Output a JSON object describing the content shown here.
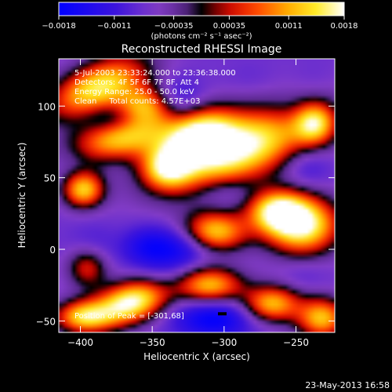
{
  "chart_data": {
    "type": "heatmap",
    "title": "Reconstructed RHESSI Image",
    "xlabel": "Heliocentric X (arcsec)",
    "ylabel": "Heliocentric Y (arcsec)",
    "xlim": [
      -415,
      -223
    ],
    "ylim": [
      -58,
      133
    ],
    "x_ticks": [
      -400,
      -350,
      -300,
      -250
    ],
    "y_ticks": [
      -50,
      0,
      50,
      100
    ],
    "x_tick_labels": [
      "−400",
      "−350",
      "−300",
      "−250"
    ],
    "y_tick_labels": [
      "−50",
      "0",
      "50",
      "100"
    ],
    "colorbar": {
      "range": [
        -0.0018,
        0.0018
      ],
      "ticks": [
        -0.0018,
        -0.0011,
        -0.00035,
        0.00035,
        0.0011,
        0.0018
      ],
      "tick_labels": [
        "−0.0018",
        "−0.0011",
        "−0.00035",
        "0.00035",
        "0.0011",
        "0.0018"
      ],
      "units_label": "(photons cm⁻² s⁻¹ asec⁻²)"
    },
    "annotations": [
      "5-Jul-2003 23:33:24.000 to 23:36:38.000",
      "Detectors: 4F 5F 6F 7F 8F, Att 4",
      "Energy Range: 25.0 - 50.0 keV",
      "Clean     Total counts: 4.57E+03"
    ],
    "peak_label": "Position of Peak = [-301,68]",
    "peak": [
      -301,
      68
    ],
    "components": [
      {
        "x": -290,
        "y": 70,
        "value": 0.00185,
        "sx": 38,
        "sy": 16,
        "angle": 20
      },
      {
        "x": -318,
        "y": 80,
        "value": 0.0014,
        "sx": 18,
        "sy": 12,
        "angle": 20
      },
      {
        "x": -372,
        "y": 77,
        "value": 0.0012,
        "sx": 24,
        "sy": 10,
        "angle": 10
      },
      {
        "x": -388,
        "y": 113,
        "value": 0.0015,
        "sx": 25,
        "sy": 12,
        "angle": 25
      },
      {
        "x": -355,
        "y": 100,
        "value": 0.001,
        "sx": 14,
        "sy": 10,
        "angle": 0
      },
      {
        "x": -340,
        "y": 57,
        "value": 0.001,
        "sx": 12,
        "sy": 10,
        "angle": 0
      },
      {
        "x": -300,
        "y": 40,
        "value": -0.0011,
        "sx": 14,
        "sy": 8,
        "angle": 0
      },
      {
        "x": -398,
        "y": 42,
        "value": 0.0013,
        "sx": 10,
        "sy": 9,
        "angle": 0
      },
      {
        "x": -308,
        "y": 12,
        "value": 0.0016,
        "sx": 16,
        "sy": 10,
        "angle": 0
      },
      {
        "x": -246,
        "y": 17,
        "value": 0.0018,
        "sx": 18,
        "sy": 14,
        "angle": 0
      },
      {
        "x": -264,
        "y": 27,
        "value": 0.0012,
        "sx": 14,
        "sy": 10,
        "angle": 0
      },
      {
        "x": -237,
        "y": 88,
        "value": 0.001,
        "sx": 10,
        "sy": 10,
        "angle": 0
      },
      {
        "x": -310,
        "y": -25,
        "value": 0.0012,
        "sx": 16,
        "sy": 9,
        "angle": 0
      },
      {
        "x": -365,
        "y": -37,
        "value": 0.0018,
        "sx": 18,
        "sy": 10,
        "angle": 15
      },
      {
        "x": -398,
        "y": -47,
        "value": 0.0012,
        "sx": 14,
        "sy": 8,
        "angle": 0
      },
      {
        "x": -267,
        "y": -38,
        "value": 0.0012,
        "sx": 14,
        "sy": 9,
        "angle": 0
      },
      {
        "x": -232,
        "y": -48,
        "value": 0.0012,
        "sx": 12,
        "sy": 10,
        "angle": 0
      },
      {
        "x": -395,
        "y": -12,
        "value": 0.0006,
        "sx": 10,
        "sy": 10,
        "angle": 0
      },
      {
        "x": -328,
        "y": 3,
        "value": -0.0018,
        "sx": 18,
        "sy": 11,
        "angle": 10
      },
      {
        "x": -355,
        "y": 2,
        "value": -0.0013,
        "sx": 12,
        "sy": 10,
        "angle": 0
      },
      {
        "x": -307,
        "y": -48,
        "value": -0.0018,
        "sx": 20,
        "sy": 10,
        "angle": 0
      },
      {
        "x": -333,
        "y": 105,
        "value": -0.0013,
        "sx": 12,
        "sy": 10,
        "angle": 0
      },
      {
        "x": -378,
        "y": 92,
        "value": -0.0011,
        "sx": 14,
        "sy": 7,
        "angle": 0
      },
      {
        "x": -252,
        "y": 97,
        "value": -0.0009,
        "sx": 12,
        "sy": 10,
        "angle": 0
      },
      {
        "x": -243,
        "y": 58,
        "value": -0.0012,
        "sx": 12,
        "sy": 10,
        "angle": 0
      },
      {
        "x": -392,
        "y": 0,
        "value": -0.0011,
        "sx": 12,
        "sy": 12,
        "angle": 0
      },
      {
        "x": -405,
        "y": 60,
        "value": -0.0008,
        "sx": 8,
        "sy": 12,
        "angle": 0
      },
      {
        "x": -282,
        "y": 120,
        "value": -0.0008,
        "sx": 12,
        "sy": 8,
        "angle": 0
      },
      {
        "x": -238,
        "y": 118,
        "value": -0.0008,
        "sx": 10,
        "sy": 10,
        "angle": 0
      },
      {
        "x": -245,
        "y": -18,
        "value": -0.0009,
        "sx": 12,
        "sy": 8,
        "angle": 0
      },
      {
        "x": -340,
        "y": -18,
        "value": -0.0009,
        "sx": 12,
        "sy": 8,
        "angle": 0
      }
    ],
    "background_value": -0.0007
  },
  "footer": {
    "timestamp": "23-May-2013 16:58"
  }
}
